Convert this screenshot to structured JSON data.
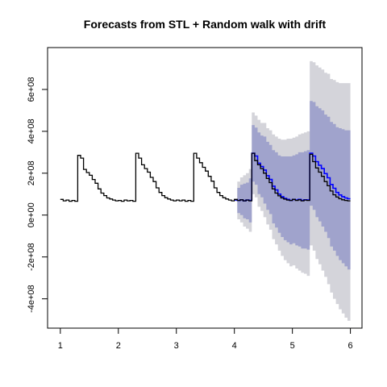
{
  "chart_data": {
    "type": "line",
    "title": "Forecasts from STL +  Random walk with drift",
    "xlabel": "",
    "ylabel": "",
    "xlim": [
      0.78,
      6.2
    ],
    "ylim": [
      -540000000,
      800000000
    ],
    "x_ticks": [
      1,
      2,
      3,
      4,
      5,
      6
    ],
    "x_tick_labels": [
      "1",
      "2",
      "3",
      "4",
      "5",
      "6"
    ],
    "y_ticks": [
      -400000000,
      -200000000,
      0,
      200000000,
      400000000,
      600000000
    ],
    "y_tick_labels": [
      "-4e+08",
      "-2e+08",
      "0e+00",
      "2e+08",
      "4e+08",
      "6e+08"
    ],
    "grid": false,
    "colors": {
      "history": "#000000",
      "forecast_line": "#0000ff",
      "band_80": "#a0a3cc",
      "band_95": "#d4d4da"
    },
    "series": [
      {
        "role": "history",
        "x": [
          1.0,
          1.05,
          1.1,
          1.15,
          1.2,
          1.25,
          1.3,
          1.35,
          1.4,
          1.45,
          1.5,
          1.55,
          1.6,
          1.65,
          1.7,
          1.75,
          1.8,
          1.85,
          1.9,
          1.95,
          2.0,
          2.05,
          2.1,
          2.15,
          2.2,
          2.25,
          2.3,
          2.35,
          2.4,
          2.45,
          2.5,
          2.55,
          2.6,
          2.65,
          2.7,
          2.75,
          2.8,
          2.85,
          2.9,
          2.95,
          3.0,
          3.05,
          3.1,
          3.15,
          3.2,
          3.25,
          3.3,
          3.35,
          3.4,
          3.45,
          3.5,
          3.55,
          3.6,
          3.65,
          3.7,
          3.75,
          3.8,
          3.85,
          3.9,
          3.95,
          4.0,
          4.05,
          4.1,
          4.15,
          4.2,
          4.25,
          4.3,
          4.35,
          4.4,
          4.45,
          4.5,
          4.55,
          4.6,
          4.65,
          4.7,
          4.75,
          4.8,
          4.85,
          4.9,
          4.95,
          5.0,
          5.05,
          5.1,
          5.15,
          5.2,
          5.25,
          5.3,
          5.35,
          5.4,
          5.45,
          5.5,
          5.55,
          5.6,
          5.65,
          5.7,
          5.75,
          5.8,
          5.85,
          5.9,
          5.95,
          6.0
        ],
        "y": [
          75000000,
          68000000,
          72000000,
          66000000,
          70000000,
          66000000,
          285000000,
          272000000,
          218000000,
          203000000,
          190000000,
          170000000,
          152000000,
          125000000,
          105000000,
          93000000,
          82000000,
          77000000,
          72000000,
          68000000,
          70000000,
          66000000,
          72000000,
          68000000,
          70000000,
          66000000,
          295000000,
          272000000,
          240000000,
          222000000,
          205000000,
          180000000,
          160000000,
          130000000,
          108000000,
          93000000,
          83000000,
          77000000,
          72000000,
          68000000,
          72000000,
          68000000,
          72000000,
          66000000,
          70000000,
          66000000,
          295000000,
          272000000,
          250000000,
          228000000,
          210000000,
          185000000,
          162000000,
          130000000,
          108000000,
          93000000,
          83000000,
          77000000,
          72000000,
          68000000,
          75000000,
          70000000,
          73000000,
          68000000,
          72000000,
          68000000,
          295000000,
          260000000,
          240000000,
          222000000,
          200000000,
          175000000,
          155000000,
          125000000,
          105000000,
          92000000,
          82000000,
          76000000,
          72000000,
          70000000,
          75000000,
          70000000,
          73000000,
          68000000,
          72000000,
          70000000,
          290000000,
          255000000,
          225000000,
          205000000,
          185000000,
          160000000,
          140000000,
          115000000,
          97000000,
          86000000,
          78000000,
          73000000,
          70000000,
          68000000,
          68000000
        ]
      },
      {
        "role": "forecast",
        "x": [
          4.0,
          4.05,
          4.1,
          4.15,
          4.2,
          4.25,
          4.3,
          4.35,
          4.4,
          4.45,
          4.5,
          4.55,
          4.6,
          4.65,
          4.7,
          4.75,
          4.8,
          4.85,
          4.9,
          4.95,
          5.0,
          5.05,
          5.1,
          5.15,
          5.2,
          5.25,
          5.3,
          5.35,
          5.4,
          5.45,
          5.5,
          5.55,
          5.6,
          5.65,
          5.7,
          5.75,
          5.8,
          5.85,
          5.9,
          5.95,
          6.0
        ],
        "y": [
          72000000,
          70000000,
          73000000,
          68000000,
          72000000,
          70000000,
          295000000,
          282000000,
          248000000,
          232000000,
          215000000,
          188000000,
          170000000,
          138000000,
          120000000,
          100000000,
          88000000,
          80000000,
          75000000,
          70000000,
          75000000,
          72000000,
          75000000,
          70000000,
          73000000,
          72000000,
          295000000,
          282000000,
          255000000,
          238000000,
          222000000,
          198000000,
          178000000,
          146000000,
          128000000,
          108000000,
          96000000,
          88000000,
          82000000,
          78000000,
          78000000
        ],
        "hi80": [
          72000000,
          130000000,
          145000000,
          150000000,
          155000000,
          175000000,
          430000000,
          418000000,
          395000000,
          380000000,
          375000000,
          350000000,
          335000000,
          310000000,
          300000000,
          285000000,
          280000000,
          280000000,
          280000000,
          280000000,
          285000000,
          290000000,
          300000000,
          300000000,
          305000000,
          310000000,
          545000000,
          540000000,
          520000000,
          510000000,
          500000000,
          480000000,
          470000000,
          445000000,
          435000000,
          420000000,
          415000000,
          410000000,
          405000000,
          405000000,
          405000000
        ],
        "lo80": [
          72000000,
          10000000,
          0,
          -15000000,
          -20000000,
          -35000000,
          160000000,
          145000000,
          100000000,
          85000000,
          55000000,
          25000000,
          5000000,
          -40000000,
          -60000000,
          -85000000,
          -105000000,
          -120000000,
          -130000000,
          -140000000,
          -135000000,
          -145000000,
          -150000000,
          -160000000,
          -160000000,
          -165000000,
          45000000,
          25000000,
          -10000000,
          -30000000,
          -55000000,
          -80000000,
          -110000000,
          -150000000,
          -170000000,
          -195000000,
          -215000000,
          -230000000,
          -245000000,
          -260000000,
          -265000000
        ],
        "hi95": [
          72000000,
          160000000,
          180000000,
          190000000,
          200000000,
          220000000,
          490000000,
          475000000,
          455000000,
          440000000,
          440000000,
          415000000,
          405000000,
          385000000,
          375000000,
          365000000,
          360000000,
          360000000,
          365000000,
          365000000,
          370000000,
          375000000,
          385000000,
          390000000,
          395000000,
          400000000,
          735000000,
          730000000,
          715000000,
          705000000,
          695000000,
          680000000,
          675000000,
          650000000,
          645000000,
          635000000,
          630000000,
          630000000,
          630000000,
          630000000,
          630000000
        ],
        "lo95": [
          72000000,
          -20000000,
          -35000000,
          -55000000,
          -65000000,
          -80000000,
          100000000,
          85000000,
          40000000,
          20000000,
          -10000000,
          -45000000,
          -70000000,
          -115000000,
          -140000000,
          -170000000,
          -195000000,
          -215000000,
          -230000000,
          -245000000,
          -240000000,
          -255000000,
          -265000000,
          -275000000,
          -280000000,
          -290000000,
          -145000000,
          -170000000,
          -210000000,
          -235000000,
          -265000000,
          -295000000,
          -330000000,
          -370000000,
          -400000000,
          -425000000,
          -450000000,
          -470000000,
          -490000000,
          -505000000,
          -510000000
        ]
      }
    ]
  }
}
